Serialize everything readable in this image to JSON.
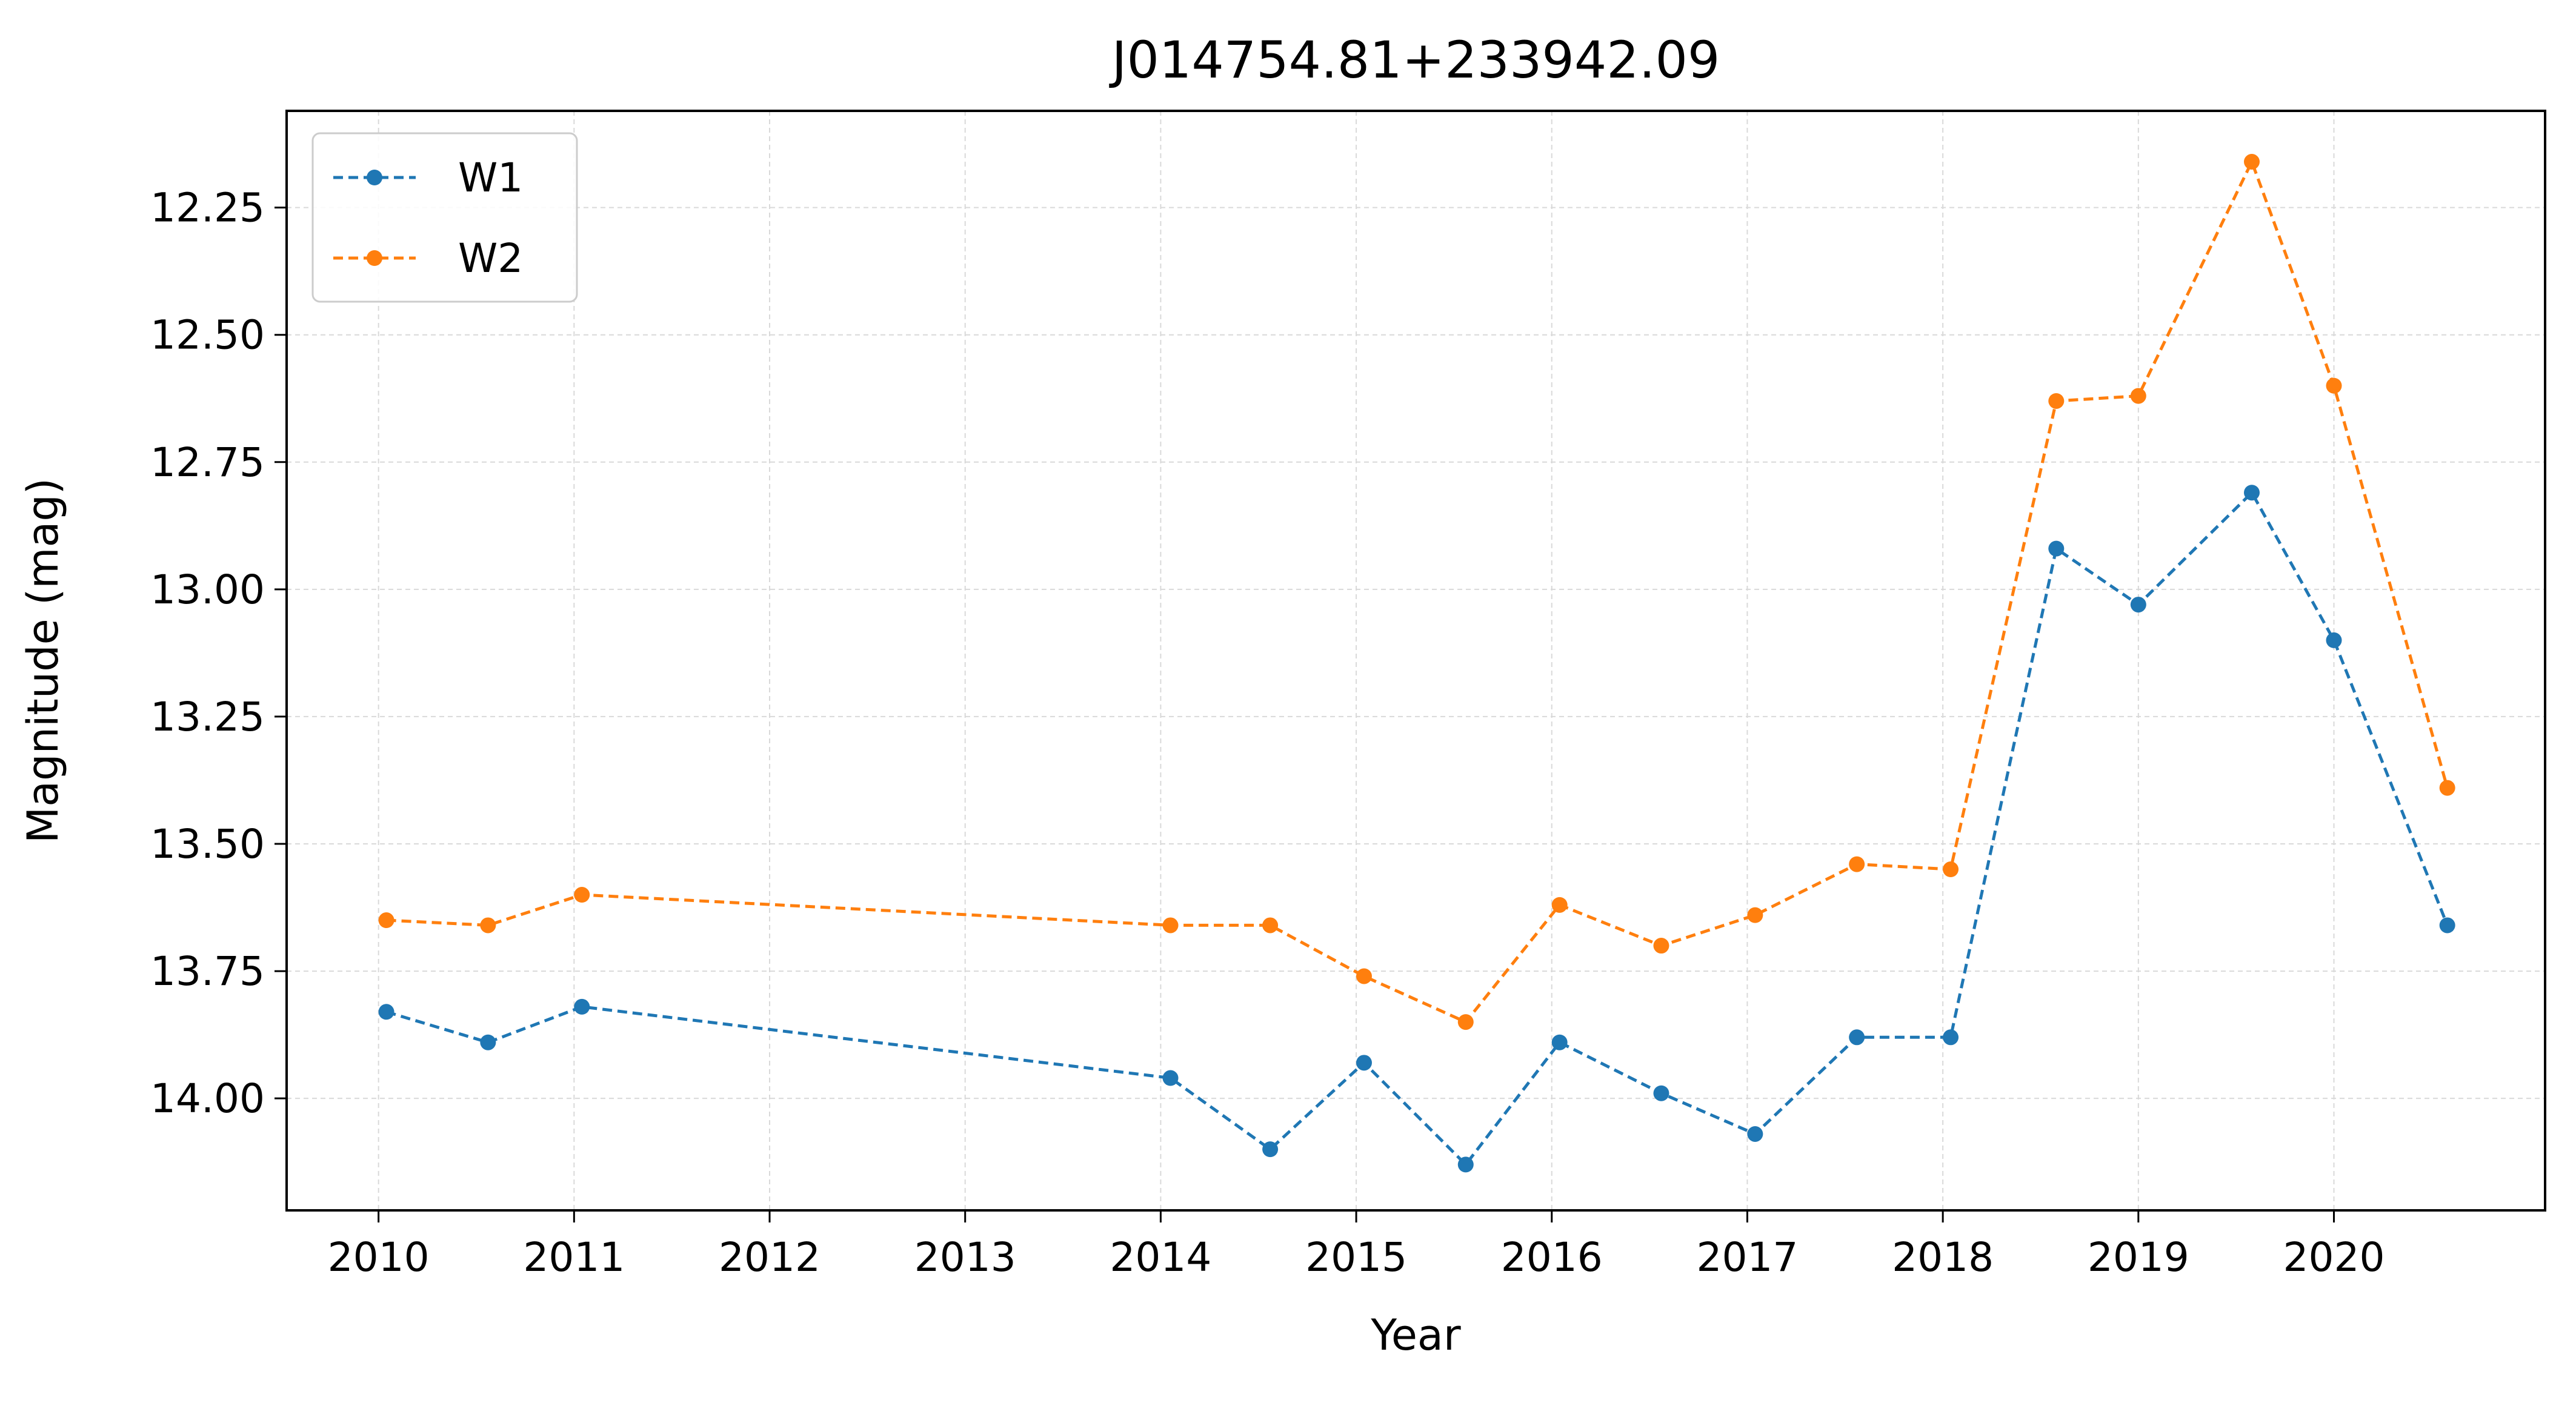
{
  "chart_data": {
    "type": "line",
    "title": "J014754.81+233942.09",
    "xlabel": "Year",
    "ylabel": "Magnitude (mag)",
    "x_ticks": [
      2010,
      2011,
      2012,
      2013,
      2014,
      2015,
      2016,
      2017,
      2018,
      2019,
      2020
    ],
    "y_ticks": [
      12.25,
      12.5,
      12.75,
      13.0,
      13.25,
      13.5,
      13.75,
      14.0
    ],
    "y_tick_labels": [
      "12.25",
      "12.50",
      "12.75",
      "13.00",
      "13.25",
      "13.50",
      "13.75",
      "14.00"
    ],
    "xlim": [
      2009.53,
      2021.08
    ],
    "ylim": [
      14.22,
      12.06
    ],
    "y_inverted": true,
    "grid": true,
    "legend_position": "upper-left",
    "series": [
      {
        "name": "W1",
        "color": "#1f77b4",
        "line_style": "dashed",
        "marker": "circle",
        "x": [
          2010.04,
          2010.56,
          2011.04,
          2014.05,
          2014.56,
          2015.04,
          2015.56,
          2016.04,
          2016.56,
          2017.04,
          2017.56,
          2018.04,
          2018.58,
          2019.0,
          2019.58,
          2020.0,
          2020.58
        ],
        "y": [
          13.83,
          13.89,
          13.82,
          13.96,
          14.1,
          13.93,
          14.13,
          13.89,
          13.99,
          14.07,
          13.88,
          13.88,
          12.92,
          13.03,
          12.81,
          13.1,
          13.66
        ]
      },
      {
        "name": "W2",
        "color": "#ff7f0e",
        "line_style": "dashed",
        "marker": "circle",
        "x": [
          2010.04,
          2010.56,
          2011.04,
          2014.05,
          2014.56,
          2015.04,
          2015.56,
          2016.04,
          2016.56,
          2017.04,
          2017.56,
          2018.04,
          2018.58,
          2019.0,
          2019.58,
          2020.0,
          2020.58
        ],
        "y": [
          13.65,
          13.66,
          13.6,
          13.66,
          13.66,
          13.76,
          13.85,
          13.62,
          13.7,
          13.64,
          13.54,
          13.55,
          12.63,
          12.62,
          12.16,
          12.6,
          13.39
        ]
      }
    ]
  }
}
